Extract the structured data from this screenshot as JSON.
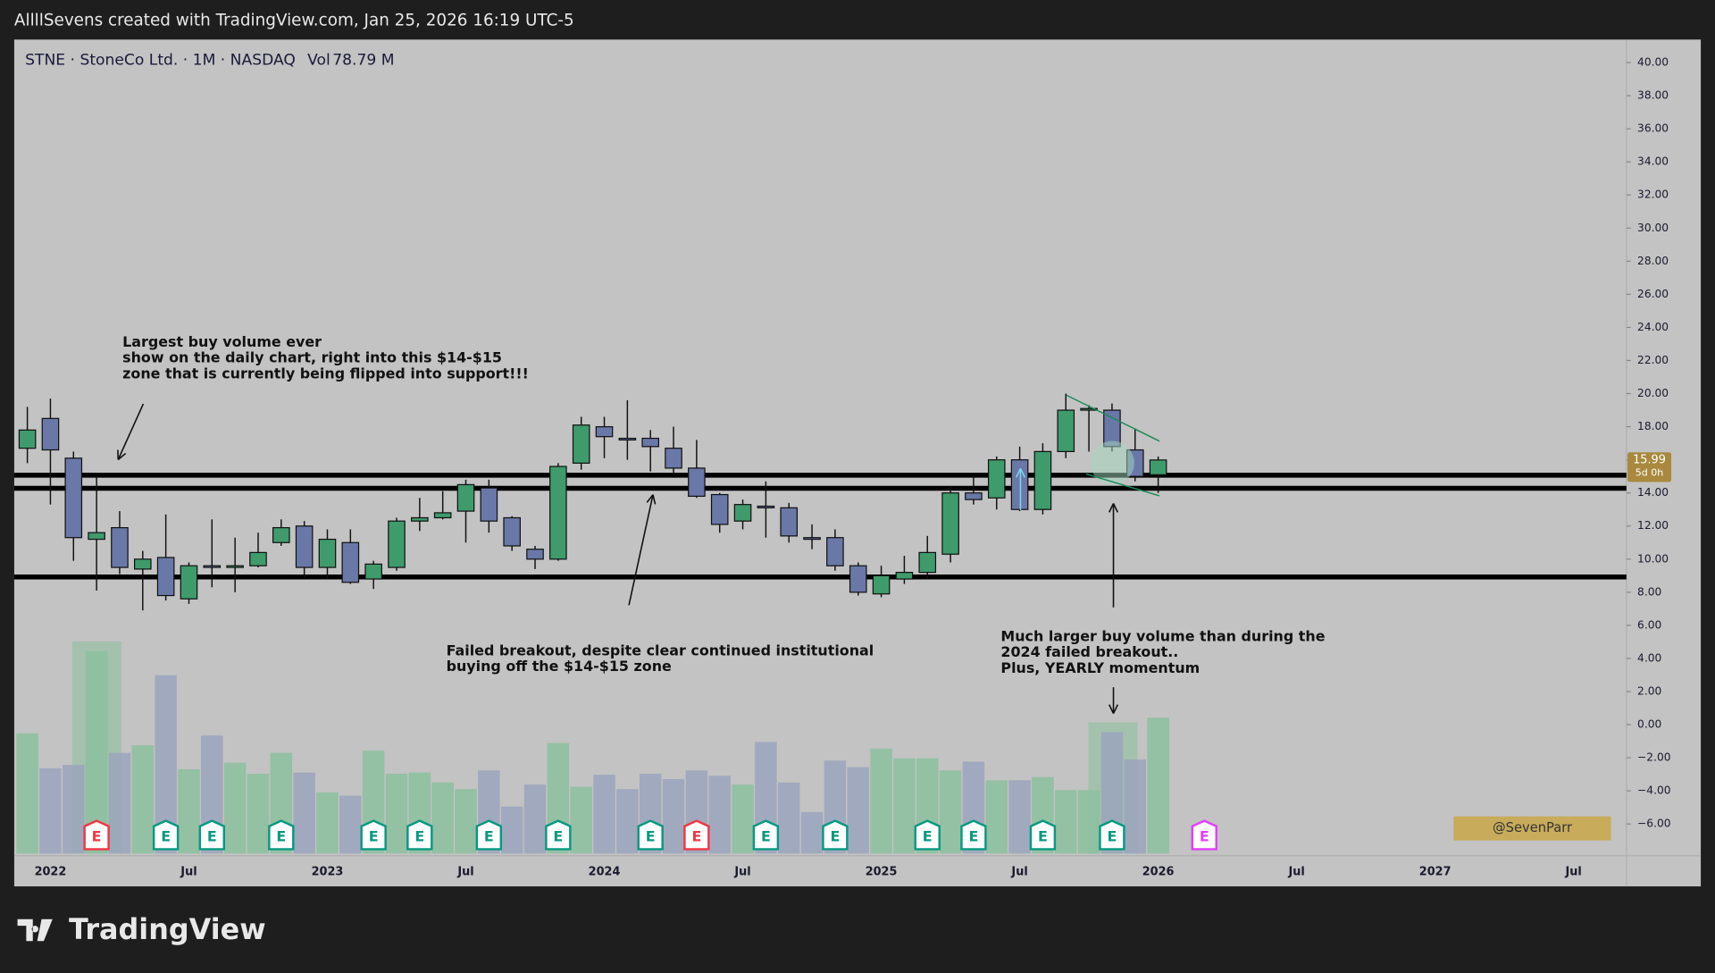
{
  "header": {
    "text": "AllllSevens created with TradingView.com, Jan 25, 2026 16:19 UTC-5"
  },
  "chart_data": {
    "type": "candlestick",
    "title": "STNE · StoneCo Ltd. · 1M · NASDAQ",
    "volume_caption": "Vol",
    "volume_value_label": "78.79 M",
    "categories": [
      null,
      "2022",
      null,
      null,
      null,
      null,
      null,
      "Jul",
      null,
      null,
      null,
      null,
      null,
      "2023",
      null,
      null,
      null,
      null,
      null,
      "Jul",
      null,
      null,
      null,
      null,
      null,
      "2024",
      null,
      null,
      null,
      null,
      null,
      "Jul",
      null,
      null,
      null,
      null,
      null,
      "2025",
      null,
      null,
      null,
      null,
      null,
      "Jul",
      null,
      null,
      null,
      null,
      null,
      "2026",
      null,
      null,
      null,
      null,
      null,
      "Jul",
      null,
      null,
      null,
      null,
      null,
      "2027",
      null,
      null,
      null,
      null,
      null,
      "Jul"
    ],
    "candles": {
      "up_color": "#3f9b6c",
      "down_color": "#6a78a8",
      "open": [
        16.7,
        18.5,
        16.1,
        11.2,
        11.9,
        9.4,
        10.1,
        7.6,
        9.6,
        9.5,
        9.6,
        11.0,
        12.0,
        9.5,
        11.0,
        8.8,
        9.5,
        12.3,
        12.5,
        12.9,
        14.3,
        12.5,
        10.6,
        10.0,
        15.8,
        18.0,
        17.3,
        17.3,
        16.7,
        15.5,
        13.9,
        12.3,
        13.2,
        13.1,
        11.3,
        11.3,
        9.6,
        7.9,
        8.8,
        9.2,
        10.3,
        14.0,
        13.7,
        16.0,
        13.0,
        16.5,
        19.0,
        19.0,
        16.6,
        15.1,
        null,
        null,
        null,
        null,
        null,
        null,
        null,
        null,
        null,
        null,
        null,
        null,
        null,
        null,
        null,
        null,
        null,
        null
      ],
      "high": [
        19.2,
        19.7,
        16.5,
        15.0,
        12.9,
        10.5,
        12.7,
        9.8,
        12.4,
        11.3,
        11.6,
        12.4,
        12.3,
        11.8,
        11.8,
        9.9,
        12.5,
        13.7,
        14.1,
        14.8,
        14.8,
        12.6,
        10.8,
        15.8,
        18.6,
        18.6,
        19.6,
        17.8,
        18.0,
        17.2,
        14.0,
        13.6,
        14.7,
        13.4,
        12.1,
        11.8,
        9.8,
        9.6,
        10.2,
        11.4,
        14.4,
        15.1,
        16.2,
        16.8,
        17.0,
        20.0,
        19.3,
        19.4,
        17.9,
        16.2,
        null,
        null,
        null,
        null,
        null,
        null,
        null,
        null,
        null,
        null,
        null,
        null,
        null,
        null,
        null,
        null,
        null,
        null
      ],
      "low": [
        15.8,
        13.3,
        9.9,
        8.1,
        9.1,
        6.9,
        7.5,
        7.3,
        8.3,
        8.0,
        9.5,
        10.8,
        8.9,
        8.8,
        8.5,
        8.2,
        9.3,
        11.7,
        12.4,
        11.0,
        11.6,
        10.5,
        9.4,
        9.9,
        15.4,
        16.1,
        16.0,
        15.3,
        15.2,
        13.7,
        11.6,
        11.8,
        11.3,
        11.0,
        10.6,
        9.3,
        7.8,
        7.7,
        8.5,
        8.8,
        9.8,
        13.3,
        13.0,
        12.9,
        12.7,
        16.1,
        16.5,
        16.5,
        14.7,
        14.0,
        null,
        null,
        null,
        null,
        null,
        null,
        null,
        null,
        null,
        null,
        null,
        null,
        null,
        null,
        null,
        null,
        null,
        null
      ],
      "close": [
        17.8,
        16.6,
        11.3,
        11.6,
        9.5,
        10.0,
        7.8,
        9.6,
        9.5,
        9.6,
        10.4,
        11.9,
        9.5,
        11.2,
        8.6,
        9.7,
        12.3,
        12.5,
        12.8,
        14.5,
        12.3,
        10.8,
        10.0,
        15.6,
        18.1,
        17.4,
        17.2,
        16.8,
        15.5,
        13.8,
        12.1,
        13.3,
        13.1,
        11.4,
        11.2,
        9.6,
        8.0,
        9.0,
        9.2,
        10.4,
        14.0,
        13.6,
        16.0,
        13.0,
        16.5,
        19.0,
        19.1,
        16.8,
        15.0,
        15.99,
        null,
        null,
        null,
        null,
        null,
        null,
        null,
        null,
        null,
        null,
        null,
        null,
        null,
        null,
        null,
        null,
        null,
        null
      ]
    },
    "volume": {
      "up_color": "#8cbf9f",
      "down_color": "#9ba4bd",
      "values": [
        69.8,
        49.5,
        51.4,
        117.4,
        58.4,
        62.8,
        103.4,
        48.9,
        68.5,
        52.7,
        46.3,
        58.4,
        47.0,
        35.5,
        33.6,
        59.7,
        46.3,
        47.0,
        41.2,
        37.4,
        48.2,
        27.3,
        40.0,
        64.1,
        38.7,
        45.7,
        37.4,
        46.3,
        43.2,
        48.2,
        45.1,
        40.0,
        64.7,
        41.2,
        24.1,
        53.9,
        50.1,
        60.9,
        55.2,
        55.2,
        48.2,
        53.3,
        42.5,
        42.5,
        44.4,
        36.8,
        36.8,
        70.4,
        54.6,
        78.79,
        null,
        null,
        null,
        null,
        null,
        null,
        null,
        null,
        null,
        null,
        null,
        null,
        null,
        null,
        null,
        null,
        null,
        null
      ]
    },
    "earnings": [
      null,
      null,
      null,
      {
        "label": "E",
        "color": "#f23645"
      },
      null,
      null,
      {
        "label": "E",
        "color": "#089981"
      },
      null,
      {
        "label": "E",
        "color": "#089981"
      },
      null,
      null,
      {
        "label": "E",
        "color": "#089981"
      },
      null,
      null,
      null,
      {
        "label": "E",
        "color": "#089981"
      },
      null,
      {
        "label": "E",
        "color": "#089981"
      },
      null,
      null,
      {
        "label": "E",
        "color": "#089981"
      },
      null,
      null,
      {
        "label": "E",
        "color": "#089981"
      },
      null,
      null,
      null,
      {
        "label": "E",
        "color": "#089981"
      },
      null,
      {
        "label": "E",
        "color": "#f23645"
      },
      null,
      null,
      {
        "label": "E",
        "color": "#089981"
      },
      null,
      null,
      {
        "label": "E",
        "color": "#089981"
      },
      null,
      null,
      null,
      {
        "label": "E",
        "color": "#089981"
      },
      null,
      {
        "label": "E",
        "color": "#089981"
      },
      null,
      null,
      {
        "label": "E",
        "color": "#089981"
      },
      null,
      null,
      {
        "label": "E",
        "color": "#089981"
      },
      null,
      null,
      null,
      {
        "label": "E",
        "color": "#e040fb"
      },
      null,
      null,
      null,
      null,
      null,
      null,
      null,
      null,
      null,
      null,
      null,
      null,
      null,
      null,
      null,
      null
    ],
    "levels": [
      15.07,
      14.28,
      8.92
    ],
    "countdown": "5d 0h",
    "ylim": [
      -7.92,
      41.39
    ],
    "yticks": [
      {
        "value": -6,
        "label": "−6.00"
      },
      {
        "value": -4,
        "label": "−4.00"
      },
      {
        "value": -2,
        "label": "−2.00"
      },
      {
        "value": 0,
        "label": "0.00"
      },
      {
        "value": 2,
        "label": "2.00"
      },
      {
        "value": 4,
        "label": "4.00"
      },
      {
        "value": 6,
        "label": "6.00"
      },
      {
        "value": 8,
        "label": "8.00"
      },
      {
        "value": 10,
        "label": "10.00"
      },
      {
        "value": 12,
        "label": "12.00"
      },
      {
        "value": 14,
        "label": "14.00"
      },
      {
        "value": 16,
        "label": "16.00"
      },
      {
        "value": 18,
        "label": "18.00"
      },
      {
        "value": 20,
        "label": "20.00"
      },
      {
        "value": 22,
        "label": "22.00"
      },
      {
        "value": 24,
        "label": "24.00"
      },
      {
        "value": 26,
        "label": "26.00"
      },
      {
        "value": 28,
        "label": "28.00"
      },
      {
        "value": 30,
        "label": "30.00"
      },
      {
        "value": 32,
        "label": "32.00"
      },
      {
        "value": 34,
        "label": "34.00"
      },
      {
        "value": 36,
        "label": "36.00"
      },
      {
        "value": 38,
        "label": "38.00"
      },
      {
        "value": 40,
        "label": "40.00"
      }
    ],
    "grid": false,
    "annotations": [
      [
        "Largest buy volume ever",
        "show on the daily chart, right into this $14-$15",
        "zone that is currently being flipped into support!!!"
      ],
      [
        "Failed breakout, despite clear continued institutional",
        "buying off the $14-$15 zone"
      ],
      [
        "Much larger buy volume than during the",
        "2024 failed breakout..",
        "Plus, YEARLY momentum"
      ]
    ]
  },
  "watermark": "@SevenParr",
  "footer": {
    "brand": "TradingView"
  }
}
